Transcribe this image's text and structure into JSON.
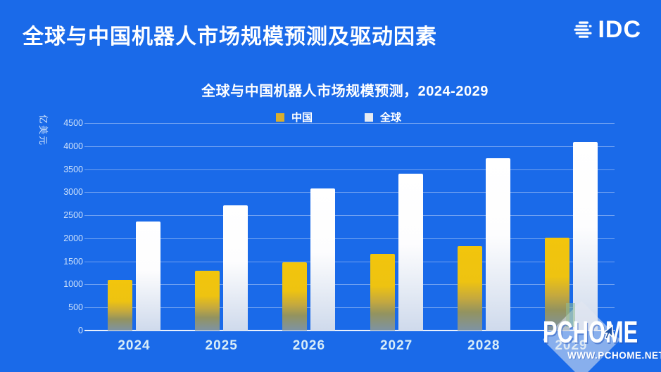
{
  "colors": {
    "background": "#1a6ae9",
    "china_bar_top": "#f2c50c",
    "china_bar_bottom": "#7e93a4",
    "global_bar_top": "#ffffff",
    "global_bar_bottom": "#cfdaec",
    "china_legend": "#d9ae2e",
    "global_legend": "#e6ebf2",
    "grid_line": "rgba(255,255,255,0.38)",
    "text_light": "#cfe2fa"
  },
  "header": {
    "title": "全球与中国机器人市场规模预测及驱动因素",
    "brand": "IDC",
    "brand_icon": "idc-globe-icon"
  },
  "chart_data": {
    "type": "bar",
    "title": "全球与中国机器人市场规模预测，2024-2029",
    "ylabel": "亿美元",
    "xlabel": "",
    "categories": [
      "2024",
      "2025",
      "2026",
      "2027",
      "2028",
      "2029"
    ],
    "series": [
      {
        "name": "中国",
        "values": [
          1100,
          1300,
          1480,
          1660,
          1830,
          2010
        ]
      },
      {
        "name": "全球",
        "values": [
          2360,
          2720,
          3080,
          3400,
          3740,
          4090
        ]
      }
    ],
    "ylim": [
      0,
      4500
    ],
    "ytick_step": 500,
    "grid": true,
    "legend_position": "top-center"
  },
  "watermark": {
    "name": "PCHOME",
    "site": "WWW.PCHOME.NET",
    "cursor_icon": "mouse-cursor-icon",
    "diamond_icon": "diamond-shape"
  }
}
